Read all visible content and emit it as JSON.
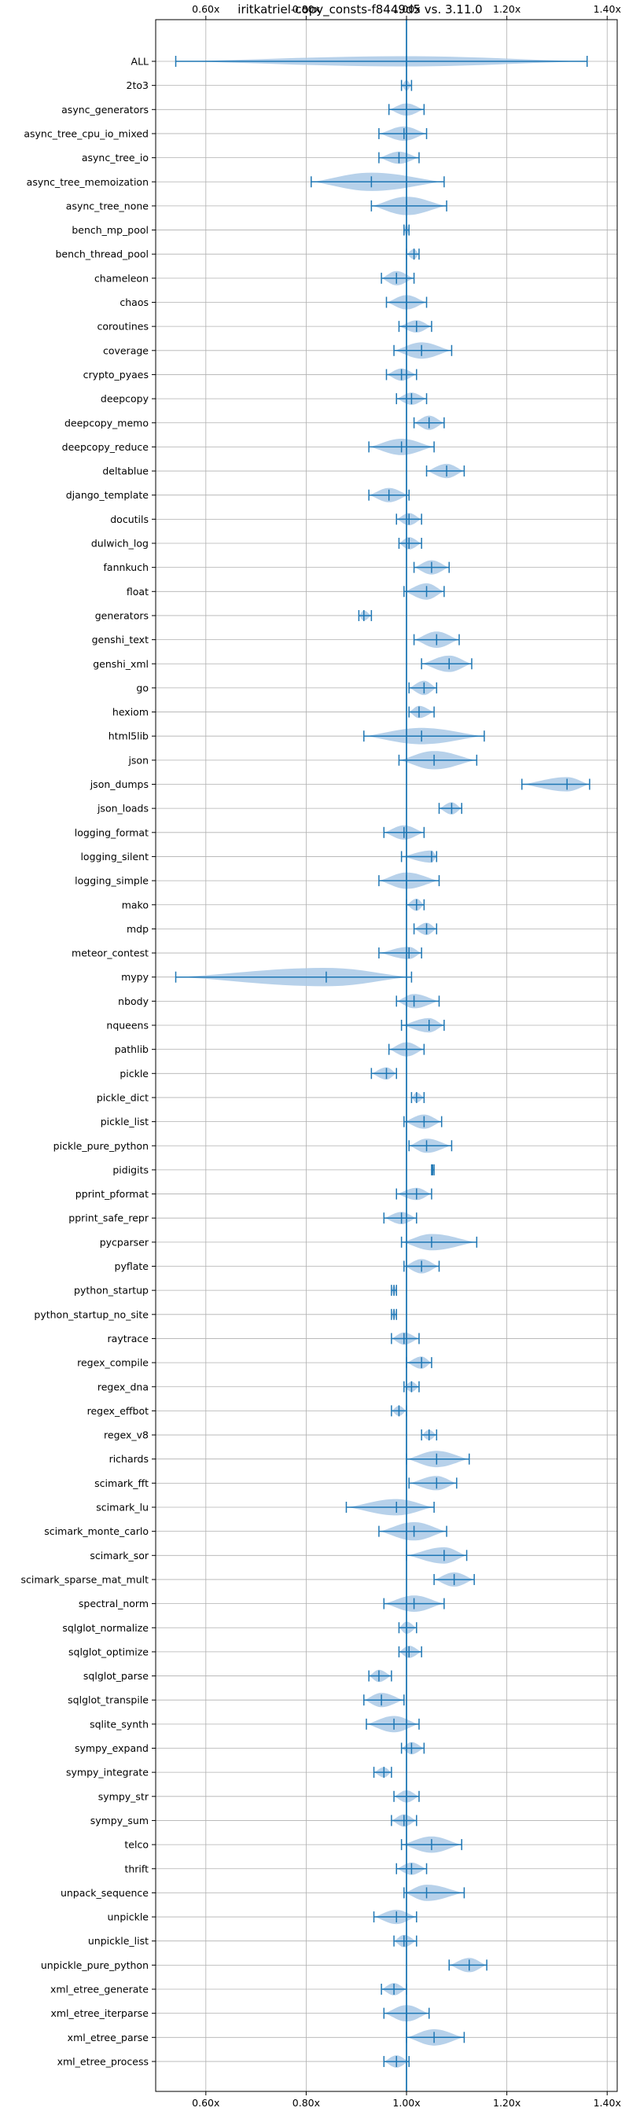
{
  "chart_data": {
    "type": "violin",
    "title": "iritkatriel-copy_consts-f8449d5 vs. 3.11.0",
    "orientation": "horizontal",
    "xlabel": "",
    "ylabel": "",
    "xlim": [
      0.5,
      1.42
    ],
    "xticks": [
      0.6,
      0.8,
      1.0,
      1.2,
      1.4
    ],
    "xtick_labels": [
      "0.60x",
      "0.80x",
      "1.00x",
      "1.20x",
      "1.40x"
    ],
    "xtick_position": "top and bottom",
    "reference_line": 1.0,
    "grid": true,
    "colors": {
      "violin_fill": "#aac9e6",
      "line": "#1f77b4"
    },
    "categories": [
      "ALL",
      "2to3",
      "async_generators",
      "async_tree_cpu_io_mixed",
      "async_tree_io",
      "async_tree_memoization",
      "async_tree_none",
      "bench_mp_pool",
      "bench_thread_pool",
      "chameleon",
      "chaos",
      "coroutines",
      "coverage",
      "crypto_pyaes",
      "deepcopy",
      "deepcopy_memo",
      "deepcopy_reduce",
      "deltablue",
      "django_template",
      "docutils",
      "dulwich_log",
      "fannkuch",
      "float",
      "generators",
      "genshi_text",
      "genshi_xml",
      "go",
      "hexiom",
      "html5lib",
      "json",
      "json_dumps",
      "json_loads",
      "logging_format",
      "logging_silent",
      "logging_simple",
      "mako",
      "mdp",
      "meteor_contest",
      "mypy",
      "nbody",
      "nqueens",
      "pathlib",
      "pickle",
      "pickle_dict",
      "pickle_list",
      "pickle_pure_python",
      "pidigits",
      "pprint_pformat",
      "pprint_safe_repr",
      "pycparser",
      "pyflate",
      "python_startup",
      "python_startup_no_site",
      "raytrace",
      "regex_compile",
      "regex_dna",
      "regex_effbot",
      "regex_v8",
      "richards",
      "scimark_fft",
      "scimark_lu",
      "scimark_monte_carlo",
      "scimark_sor",
      "scimark_sparse_mat_mult",
      "spectral_norm",
      "sqlglot_normalize",
      "sqlglot_optimize",
      "sqlglot_parse",
      "sqlglot_transpile",
      "sqlite_synth",
      "sympy_expand",
      "sympy_integrate",
      "sympy_str",
      "sympy_sum",
      "telco",
      "thrift",
      "unpack_sequence",
      "unpickle",
      "unpickle_list",
      "unpickle_pure_python",
      "xml_etree_generate",
      "xml_etree_iterparse",
      "xml_etree_parse",
      "xml_etree_process"
    ],
    "series": [
      {
        "min": 0.54,
        "max": 1.36,
        "mean": 1.0,
        "width": 0.5
      },
      {
        "min": 0.99,
        "max": 1.01,
        "mean": 1.0,
        "width": 0.5
      },
      {
        "min": 0.965,
        "max": 1.035,
        "mean": 1.0,
        "width": 0.6
      },
      {
        "min": 0.945,
        "max": 1.04,
        "mean": 0.995,
        "width": 0.7
      },
      {
        "min": 0.945,
        "max": 1.025,
        "mean": 0.985,
        "width": 0.6
      },
      {
        "min": 0.81,
        "max": 1.075,
        "mean": 0.93,
        "width": 0.9
      },
      {
        "min": 0.93,
        "max": 1.08,
        "mean": 1.0,
        "width": 0.9
      },
      {
        "min": 0.995,
        "max": 1.005,
        "mean": 1.0,
        "width": 0.6
      },
      {
        "min": 1.0,
        "max": 1.025,
        "mean": 1.015,
        "width": 0.5
      },
      {
        "min": 0.95,
        "max": 1.015,
        "mean": 0.98,
        "width": 0.7
      },
      {
        "min": 0.96,
        "max": 1.04,
        "mean": 1.0,
        "width": 0.7
      },
      {
        "min": 0.985,
        "max": 1.05,
        "mean": 1.02,
        "width": 0.6
      },
      {
        "min": 0.975,
        "max": 1.09,
        "mean": 1.03,
        "width": 0.8
      },
      {
        "min": 0.96,
        "max": 1.02,
        "mean": 0.99,
        "width": 0.6
      },
      {
        "min": 0.98,
        "max": 1.04,
        "mean": 1.01,
        "width": 0.6
      },
      {
        "min": 1.015,
        "max": 1.075,
        "mean": 1.045,
        "width": 0.7
      },
      {
        "min": 0.925,
        "max": 1.055,
        "mean": 0.99,
        "width": 0.8
      },
      {
        "min": 1.04,
        "max": 1.115,
        "mean": 1.08,
        "width": 0.7
      },
      {
        "min": 0.925,
        "max": 1.005,
        "mean": 0.965,
        "width": 0.7
      },
      {
        "min": 0.98,
        "max": 1.03,
        "mean": 1.005,
        "width": 0.6
      },
      {
        "min": 0.985,
        "max": 1.03,
        "mean": 1.005,
        "width": 0.6
      },
      {
        "min": 1.015,
        "max": 1.085,
        "mean": 1.05,
        "width": 0.7
      },
      {
        "min": 0.995,
        "max": 1.075,
        "mean": 1.04,
        "width": 0.8
      },
      {
        "min": 0.905,
        "max": 0.93,
        "mean": 0.915,
        "width": 0.5
      },
      {
        "min": 1.015,
        "max": 1.105,
        "mean": 1.06,
        "width": 0.8
      },
      {
        "min": 1.03,
        "max": 1.13,
        "mean": 1.085,
        "width": 0.8
      },
      {
        "min": 1.005,
        "max": 1.06,
        "mean": 1.035,
        "width": 0.7
      },
      {
        "min": 1.005,
        "max": 1.055,
        "mean": 1.025,
        "width": 0.6
      },
      {
        "min": 0.915,
        "max": 1.155,
        "mean": 1.03,
        "width": 0.8
      },
      {
        "min": 0.985,
        "max": 1.14,
        "mean": 1.055,
        "width": 0.9
      },
      {
        "min": 1.23,
        "max": 1.365,
        "mean": 1.32,
        "width": 0.7
      },
      {
        "min": 1.065,
        "max": 1.11,
        "mean": 1.09,
        "width": 0.6
      },
      {
        "min": 0.955,
        "max": 1.035,
        "mean": 0.995,
        "width": 0.7
      },
      {
        "min": 0.99,
        "max": 1.06,
        "mean": 1.05,
        "width": 0.6
      },
      {
        "min": 0.945,
        "max": 1.065,
        "mean": 1.0,
        "width": 0.8
      },
      {
        "min": 1.0,
        "max": 1.035,
        "mean": 1.02,
        "width": 0.6
      },
      {
        "min": 1.015,
        "max": 1.06,
        "mean": 1.04,
        "width": 0.6
      },
      {
        "min": 0.945,
        "max": 1.03,
        "mean": 1.005,
        "width": 0.6
      },
      {
        "min": 0.54,
        "max": 1.01,
        "mean": 0.84,
        "width": 0.9
      },
      {
        "min": 0.98,
        "max": 1.065,
        "mean": 1.015,
        "width": 0.7
      },
      {
        "min": 0.99,
        "max": 1.075,
        "mean": 1.045,
        "width": 0.7
      },
      {
        "min": 0.965,
        "max": 1.035,
        "mean": 1.0,
        "width": 0.7
      },
      {
        "min": 0.93,
        "max": 0.98,
        "mean": 0.96,
        "width": 0.6
      },
      {
        "min": 1.01,
        "max": 1.035,
        "mean": 1.02,
        "width": 0.5
      },
      {
        "min": 0.995,
        "max": 1.07,
        "mean": 1.035,
        "width": 0.7
      },
      {
        "min": 1.005,
        "max": 1.09,
        "mean": 1.04,
        "width": 0.7
      },
      {
        "min": 1.05,
        "max": 1.055,
        "mean": 1.052,
        "width": 0.5
      },
      {
        "min": 0.98,
        "max": 1.05,
        "mean": 1.02,
        "width": 0.6
      },
      {
        "min": 0.955,
        "max": 1.02,
        "mean": 0.99,
        "width": 0.6
      },
      {
        "min": 0.99,
        "max": 1.14,
        "mean": 1.05,
        "width": 0.8
      },
      {
        "min": 0.995,
        "max": 1.065,
        "mean": 1.03,
        "width": 0.7
      },
      {
        "min": 0.97,
        "max": 0.98,
        "mean": 0.975,
        "width": 0.5
      },
      {
        "min": 0.97,
        "max": 0.98,
        "mean": 0.975,
        "width": 0.5
      },
      {
        "min": 0.97,
        "max": 1.025,
        "mean": 0.995,
        "width": 0.6
      },
      {
        "min": 1.0,
        "max": 1.05,
        "mean": 1.03,
        "width": 0.6
      },
      {
        "min": 0.995,
        "max": 1.025,
        "mean": 1.01,
        "width": 0.5
      },
      {
        "min": 0.97,
        "max": 1.0,
        "mean": 0.985,
        "width": 0.5
      },
      {
        "min": 1.03,
        "max": 1.06,
        "mean": 1.045,
        "width": 0.5
      },
      {
        "min": 1.0,
        "max": 1.125,
        "mean": 1.06,
        "width": 0.8
      },
      {
        "min": 1.005,
        "max": 1.1,
        "mean": 1.06,
        "width": 0.7
      },
      {
        "min": 0.88,
        "max": 1.055,
        "mean": 0.98,
        "width": 0.8
      },
      {
        "min": 0.945,
        "max": 1.08,
        "mean": 1.015,
        "width": 0.9
      },
      {
        "min": 1.0,
        "max": 1.12,
        "mean": 1.075,
        "width": 0.8
      },
      {
        "min": 1.055,
        "max": 1.135,
        "mean": 1.095,
        "width": 0.7
      },
      {
        "min": 0.955,
        "max": 1.075,
        "mean": 1.015,
        "width": 0.8
      },
      {
        "min": 0.985,
        "max": 1.02,
        "mean": 1.0,
        "width": 0.6
      },
      {
        "min": 0.985,
        "max": 1.03,
        "mean": 1.005,
        "width": 0.6
      },
      {
        "min": 0.925,
        "max": 0.97,
        "mean": 0.945,
        "width": 0.6
      },
      {
        "min": 0.915,
        "max": 0.995,
        "mean": 0.95,
        "width": 0.7
      },
      {
        "min": 0.92,
        "max": 1.025,
        "mean": 0.975,
        "width": 0.8
      },
      {
        "min": 0.99,
        "max": 1.035,
        "mean": 1.01,
        "width": 0.6
      },
      {
        "min": 0.935,
        "max": 0.97,
        "mean": 0.955,
        "width": 0.5
      },
      {
        "min": 0.975,
        "max": 1.025,
        "mean": 1.0,
        "width": 0.6
      },
      {
        "min": 0.97,
        "max": 1.02,
        "mean": 0.995,
        "width": 0.6
      },
      {
        "min": 0.99,
        "max": 1.11,
        "mean": 1.05,
        "width": 0.8
      },
      {
        "min": 0.98,
        "max": 1.04,
        "mean": 1.01,
        "width": 0.6
      },
      {
        "min": 0.995,
        "max": 1.115,
        "mean": 1.04,
        "width": 0.8
      },
      {
        "min": 0.935,
        "max": 1.02,
        "mean": 0.98,
        "width": 0.7
      },
      {
        "min": 0.975,
        "max": 1.02,
        "mean": 0.995,
        "width": 0.6
      },
      {
        "min": 1.085,
        "max": 1.16,
        "mean": 1.125,
        "width": 0.7
      },
      {
        "min": 0.95,
        "max": 1.0,
        "mean": 0.975,
        "width": 0.6
      },
      {
        "min": 0.955,
        "max": 1.045,
        "mean": 1.0,
        "width": 0.8
      },
      {
        "min": 1.0,
        "max": 1.115,
        "mean": 1.055,
        "width": 0.8
      },
      {
        "min": 0.955,
        "max": 1.005,
        "mean": 0.98,
        "width": 0.6
      }
    ]
  }
}
